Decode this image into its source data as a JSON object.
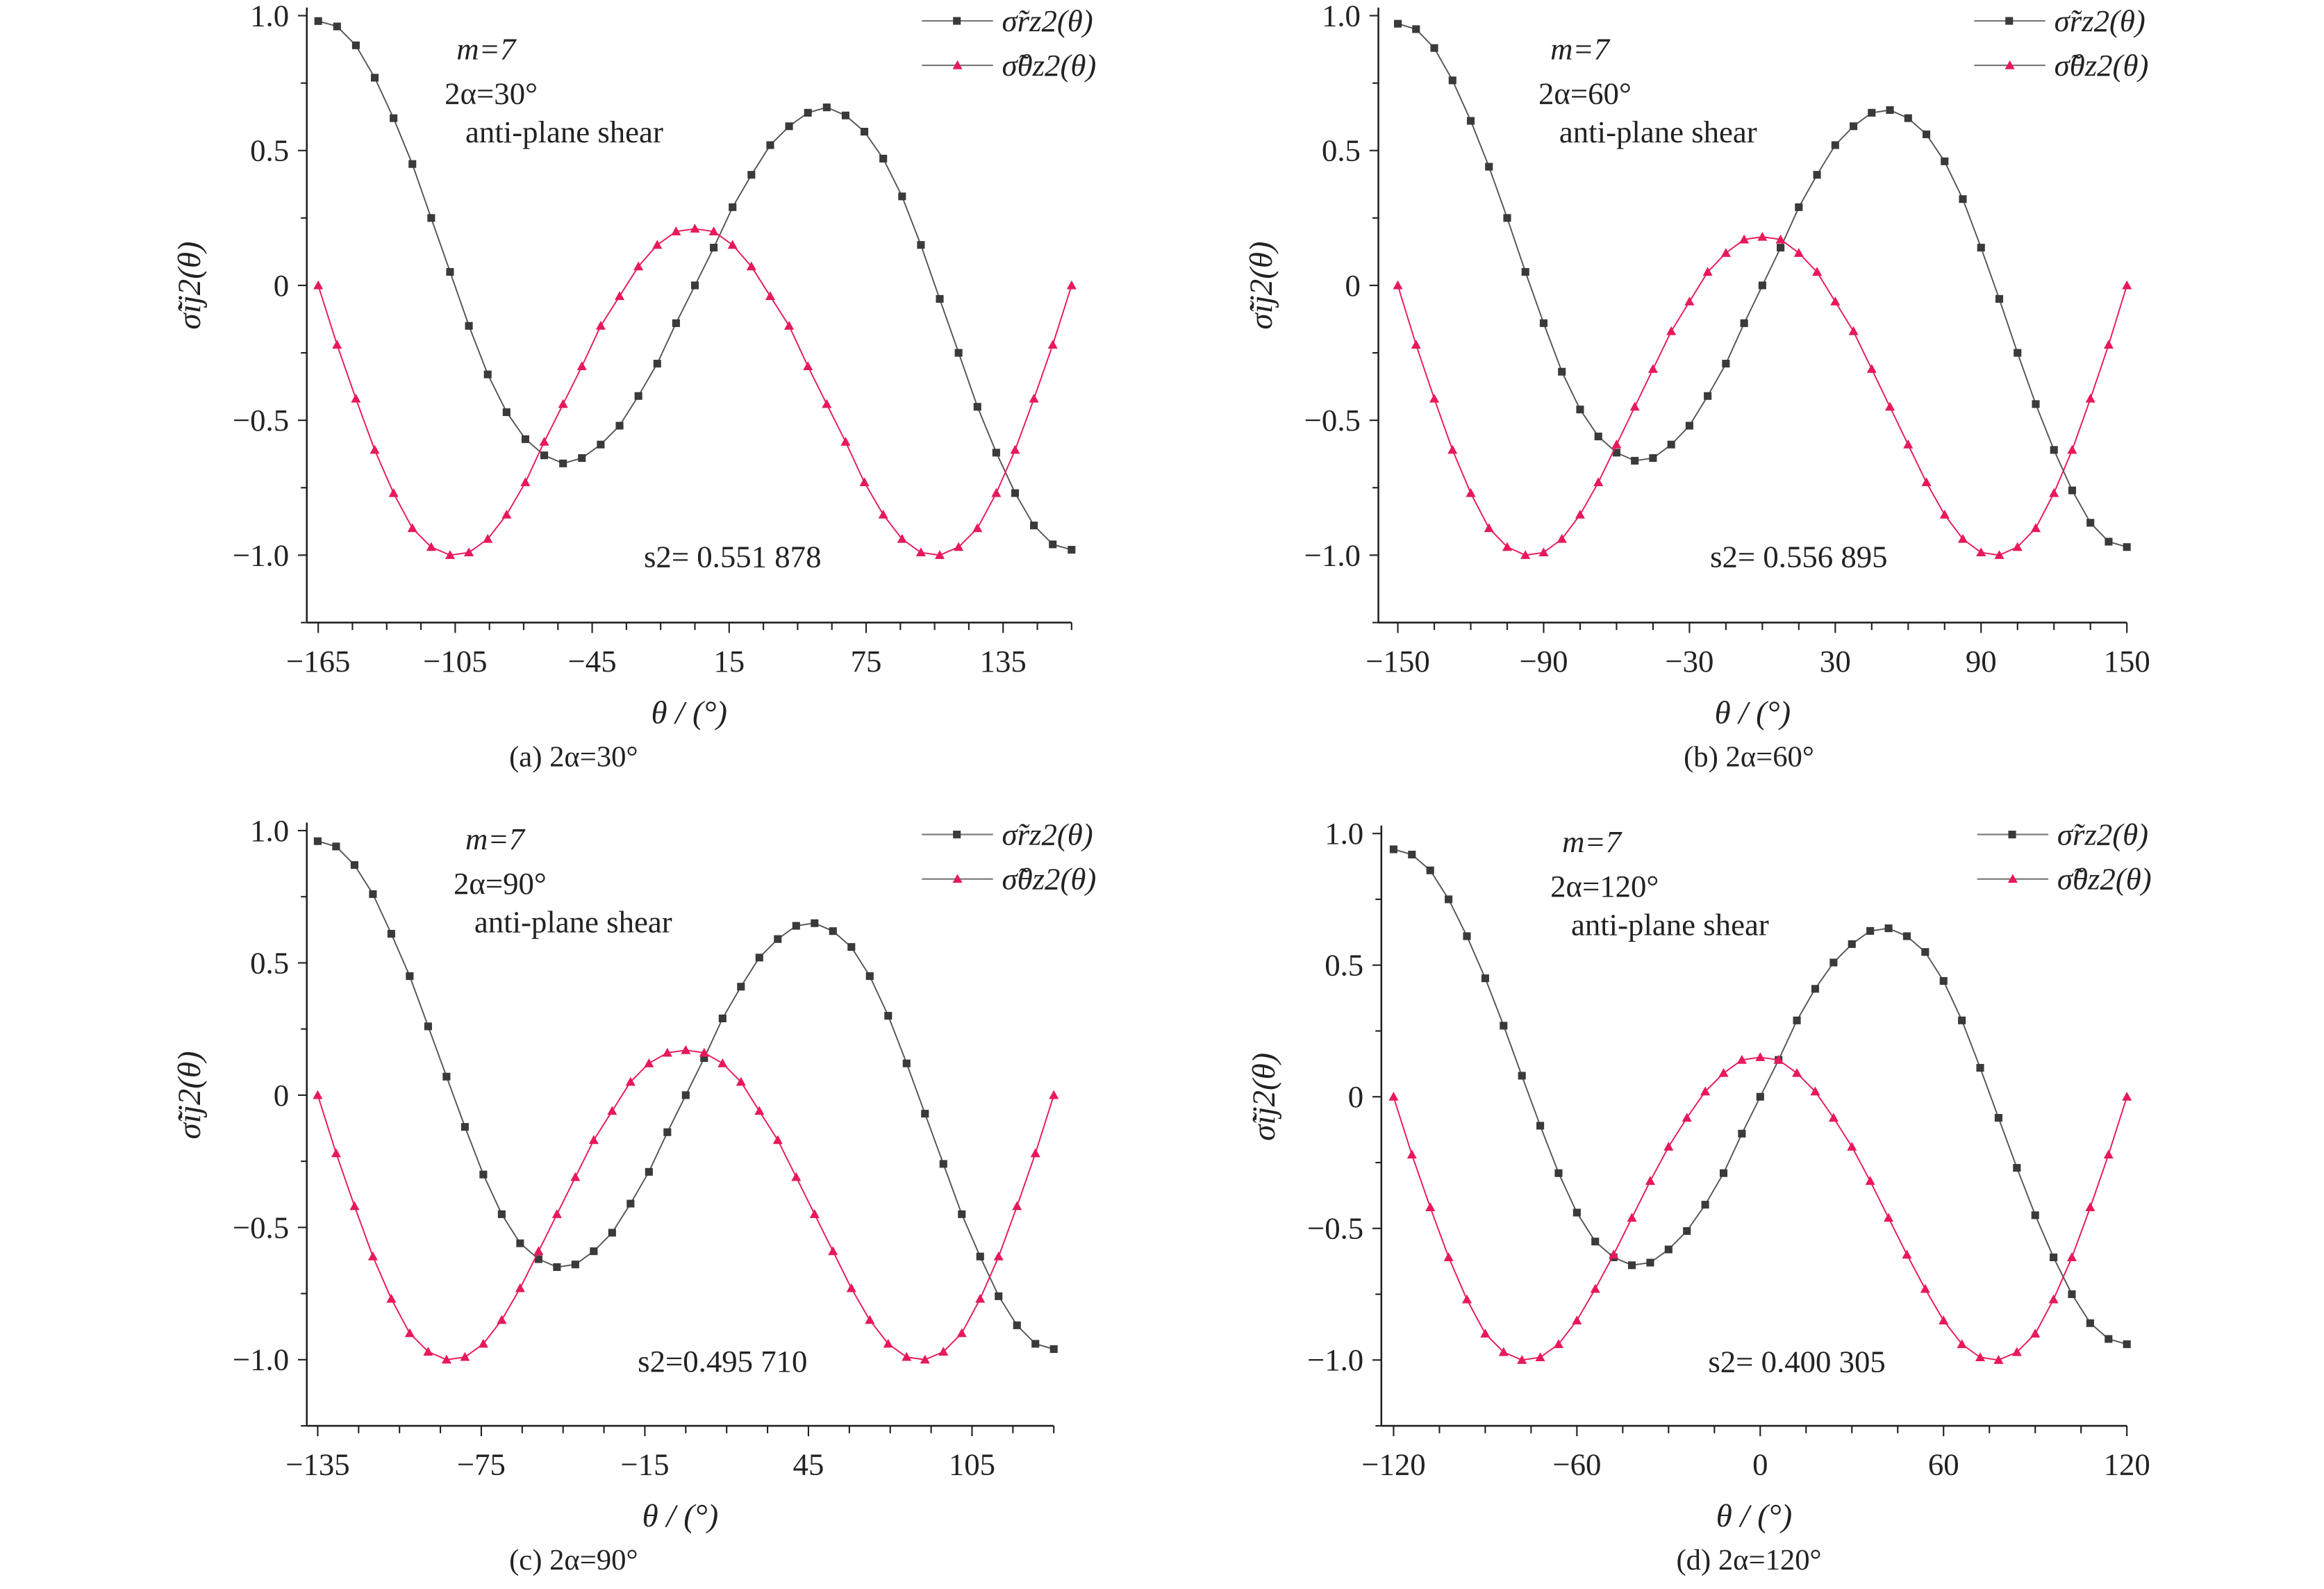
{
  "chart_data": [
    {
      "type": "line",
      "panel": "a",
      "caption": "(a) 2α=30°",
      "xlabel": "θ / (°)",
      "ylabel": "σ̃ij2(θ)",
      "xlim": [
        -170,
        165
      ],
      "ylim": [
        -1.25,
        1.03
      ],
      "xticks": [
        -165,
        -105,
        -45,
        15,
        75,
        135
      ],
      "yticks": [
        1.0,
        0.5,
        0,
        -0.5,
        -1.0
      ],
      "ytick_labels": [
        "1.0",
        "0.5",
        "0",
        "−0.5",
        "−1.0"
      ],
      "xtick_labels": [
        "−165",
        "−105",
        "−45",
        "15",
        "75",
        "135"
      ],
      "annotations": {
        "m": "m=7",
        "angle": "2α=30°",
        "load": "anti-plane shear",
        "s2": "s2= 0.551 878"
      },
      "x_start": -165,
      "x_end": 165,
      "series": [
        {
          "name": "σ̃rz2(θ)",
          "marker": "square",
          "color": "#3a3a3a",
          "values": [
            0.98,
            0.96,
            0.89,
            0.77,
            0.62,
            0.45,
            0.25,
            0.05,
            -0.15,
            -0.33,
            -0.47,
            -0.57,
            -0.63,
            -0.66,
            -0.64,
            -0.59,
            -0.52,
            -0.41,
            -0.29,
            -0.14,
            0,
            0.14,
            0.29,
            0.41,
            0.52,
            0.59,
            0.64,
            0.66,
            0.63,
            0.57,
            0.47,
            0.33,
            0.15,
            -0.05,
            -0.25,
            -0.45,
            -0.62,
            -0.77,
            -0.89,
            -0.96,
            -0.98
          ]
        },
        {
          "name": "σ̃θz2(θ)",
          "marker": "triangle",
          "color": "#e8195a",
          "values": [
            0,
            -0.22,
            -0.42,
            -0.61,
            -0.77,
            -0.9,
            -0.97,
            -1.0,
            -0.99,
            -0.94,
            -0.85,
            -0.73,
            -0.58,
            -0.44,
            -0.3,
            -0.15,
            -0.04,
            0.07,
            0.15,
            0.2,
            0.21,
            0.2,
            0.15,
            0.07,
            -0.04,
            -0.15,
            -0.3,
            -0.44,
            -0.58,
            -0.73,
            -0.85,
            -0.94,
            -0.99,
            -1.0,
            -0.97,
            -0.9,
            -0.77,
            -0.61,
            -0.42,
            -0.22,
            0
          ]
        }
      ]
    },
    {
      "type": "line",
      "panel": "b",
      "caption": "(b) 2α=60°",
      "xlabel": "θ / (°)",
      "ylabel": "σ̃ij2(θ)",
      "xlim": [
        -158,
        150
      ],
      "ylim": [
        -1.25,
        1.03
      ],
      "xticks": [
        -150,
        -90,
        -30,
        30,
        90,
        150
      ],
      "yticks": [
        1.0,
        0.5,
        0,
        -0.5,
        -1.0
      ],
      "ytick_labels": [
        "1.0",
        "0.5",
        "0",
        "−0.5",
        "−1.0"
      ],
      "xtick_labels": [
        "−150",
        "−90",
        "−30",
        "30",
        "90",
        "150"
      ],
      "annotations": {
        "m": "m=7",
        "angle": "2α=60°",
        "load": "anti-plane shear",
        "s2": "s2= 0.556 895"
      },
      "x_start": -150,
      "x_end": 150,
      "series": [
        {
          "name": "σ̃rz2(θ)",
          "marker": "square",
          "color": "#3a3a3a",
          "values": [
            0.97,
            0.95,
            0.88,
            0.76,
            0.61,
            0.44,
            0.25,
            0.05,
            -0.14,
            -0.32,
            -0.46,
            -0.56,
            -0.62,
            -0.65,
            -0.64,
            -0.59,
            -0.52,
            -0.41,
            -0.29,
            -0.14,
            0,
            0.14,
            0.29,
            0.41,
            0.52,
            0.59,
            0.64,
            0.65,
            0.62,
            0.56,
            0.46,
            0.32,
            0.14,
            -0.05,
            -0.25,
            -0.44,
            -0.61,
            -0.76,
            -0.88,
            -0.95,
            -0.97
          ]
        },
        {
          "name": "σ̃θz2(θ)",
          "marker": "triangle",
          "color": "#e8195a",
          "values": [
            0,
            -0.22,
            -0.42,
            -0.61,
            -0.77,
            -0.9,
            -0.97,
            -1.0,
            -0.99,
            -0.94,
            -0.85,
            -0.73,
            -0.59,
            -0.45,
            -0.31,
            -0.17,
            -0.06,
            0.05,
            0.12,
            0.17,
            0.18,
            0.17,
            0.12,
            0.05,
            -0.06,
            -0.17,
            -0.31,
            -0.45,
            -0.59,
            -0.73,
            -0.85,
            -0.94,
            -0.99,
            -1.0,
            -0.97,
            -0.9,
            -0.77,
            -0.61,
            -0.42,
            -0.22,
            0
          ]
        }
      ]
    },
    {
      "type": "line",
      "panel": "c",
      "caption": "(c) 2α=90°",
      "xlabel": "θ / (°)",
      "ylabel": "σ̃ij2(θ)",
      "xlim": [
        -139,
        135
      ],
      "ylim": [
        -1.25,
        1.03
      ],
      "xticks": [
        -135,
        -75,
        -15,
        45,
        105
      ],
      "yticks": [
        1.0,
        0.5,
        0,
        -0.5,
        -1.0
      ],
      "ytick_labels": [
        "1.0",
        "0.5",
        "0",
        "−0.5",
        "−1.0"
      ],
      "xtick_labels": [
        "−135",
        "−75",
        "−15",
        "45",
        "105"
      ],
      "annotations": {
        "m": "m=7",
        "angle": "2α=90°",
        "load": "anti-plane shear",
        "s2": "s2=0.495 710"
      },
      "x_start": -135,
      "x_end": 135,
      "series": [
        {
          "name": "σ̃rz2(θ)",
          "marker": "square",
          "color": "#3a3a3a",
          "values": [
            0.96,
            0.94,
            0.87,
            0.76,
            0.61,
            0.45,
            0.26,
            0.07,
            -0.12,
            -0.3,
            -0.45,
            -0.56,
            -0.62,
            -0.65,
            -0.64,
            -0.59,
            -0.52,
            -0.41,
            -0.29,
            -0.14,
            0,
            0.14,
            0.29,
            0.41,
            0.52,
            0.59,
            0.64,
            0.65,
            0.62,
            0.56,
            0.45,
            0.3,
            0.12,
            -0.07,
            -0.26,
            -0.45,
            -0.61,
            -0.76,
            -0.87,
            -0.94,
            -0.96
          ]
        },
        {
          "name": "σ̃θz2(θ)",
          "marker": "triangle",
          "color": "#e8195a",
          "values": [
            0,
            -0.22,
            -0.42,
            -0.61,
            -0.77,
            -0.9,
            -0.97,
            -1.0,
            -0.99,
            -0.94,
            -0.85,
            -0.73,
            -0.59,
            -0.45,
            -0.31,
            -0.17,
            -0.06,
            0.05,
            0.12,
            0.16,
            0.17,
            0.16,
            0.12,
            0.05,
            -0.06,
            -0.17,
            -0.31,
            -0.45,
            -0.59,
            -0.73,
            -0.85,
            -0.94,
            -0.99,
            -1.0,
            -0.97,
            -0.9,
            -0.77,
            -0.61,
            -0.42,
            -0.22,
            0
          ]
        }
      ]
    },
    {
      "type": "line",
      "panel": "d",
      "caption": "(d) 2α=120°",
      "xlabel": "θ / (°)",
      "ylabel": "σ̃ij2(θ)",
      "xlim": [
        -124,
        120
      ],
      "ylim": [
        -1.25,
        1.03
      ],
      "xticks": [
        -120,
        -60,
        0,
        60,
        120
      ],
      "yticks": [
        1.0,
        0.5,
        0,
        -0.5,
        -1.0
      ],
      "ytick_labels": [
        "1.0",
        "0.5",
        "0",
        "−0.5",
        "−1.0"
      ],
      "xtick_labels": [
        "−120",
        "−60",
        "0",
        "60",
        "120"
      ],
      "annotations": {
        "m": "m=7",
        "angle": "2α=120°",
        "load": "anti-plane shear",
        "s2": "s2= 0.400 305"
      },
      "x_start": -120,
      "x_end": 120,
      "series": [
        {
          "name": "σ̃rz2(θ)",
          "marker": "square",
          "color": "#3a3a3a",
          "values": [
            0.94,
            0.92,
            0.86,
            0.75,
            0.61,
            0.45,
            0.27,
            0.08,
            -0.11,
            -0.29,
            -0.44,
            -0.55,
            -0.61,
            -0.64,
            -0.63,
            -0.58,
            -0.51,
            -0.41,
            -0.29,
            -0.14,
            0,
            0.14,
            0.29,
            0.41,
            0.51,
            0.58,
            0.63,
            0.64,
            0.61,
            0.55,
            0.44,
            0.29,
            0.11,
            -0.08,
            -0.27,
            -0.45,
            -0.61,
            -0.75,
            -0.86,
            -0.92,
            -0.94
          ]
        },
        {
          "name": "σ̃θz2(θ)",
          "marker": "triangle",
          "color": "#e8195a",
          "values": [
            0,
            -0.22,
            -0.42,
            -0.61,
            -0.77,
            -0.9,
            -0.97,
            -1.0,
            -0.99,
            -0.94,
            -0.85,
            -0.73,
            -0.6,
            -0.46,
            -0.32,
            -0.19,
            -0.08,
            0.02,
            0.09,
            0.14,
            0.15,
            0.14,
            0.09,
            0.02,
            -0.08,
            -0.19,
            -0.32,
            -0.46,
            -0.6,
            -0.73,
            -0.85,
            -0.94,
            -0.99,
            -1.0,
            -0.97,
            -0.9,
            -0.77,
            -0.61,
            -0.42,
            -0.22,
            0
          ]
        }
      ]
    }
  ]
}
